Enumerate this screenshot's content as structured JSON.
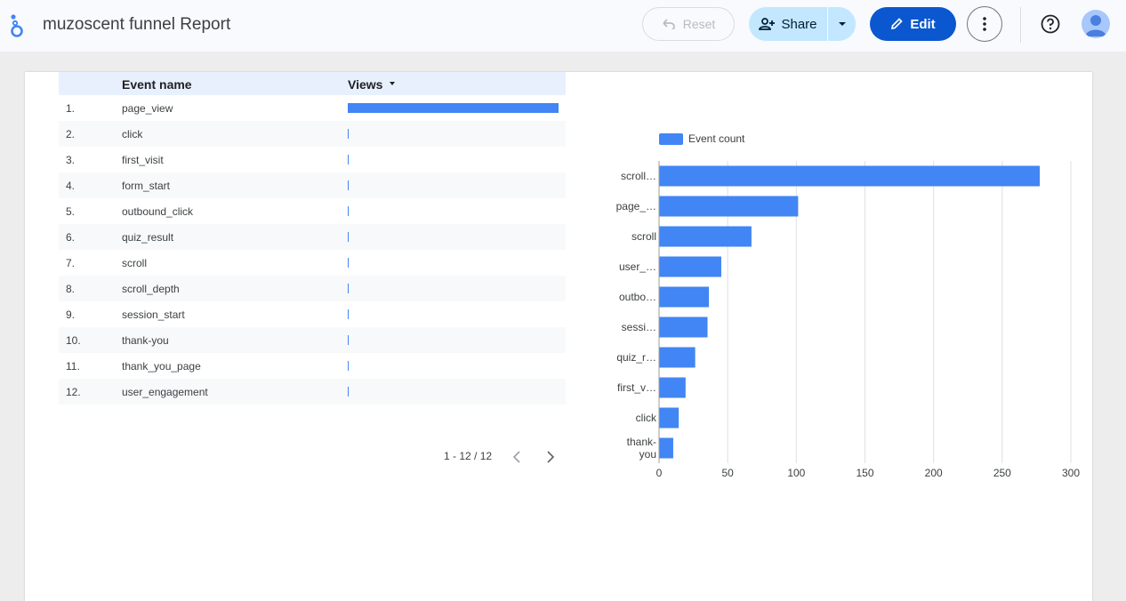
{
  "app": {
    "title": "muzoscent funnel Report"
  },
  "toolbar": {
    "reset_label": "Reset",
    "share_label": "Share",
    "edit_label": "Edit"
  },
  "colors": {
    "accent": "#0b57d0",
    "bar": "#4285f4",
    "share_bg": "#c2e7ff"
  },
  "icons": [
    "looker-studio-logo-icon",
    "undo-icon",
    "add-person-icon",
    "caret-down-icon",
    "pencil-icon",
    "more-vert-icon",
    "help-icon",
    "account-icon",
    "chevron-left-icon",
    "chevron-right-icon"
  ],
  "table": {
    "columns": [
      "Event name",
      "Views"
    ],
    "sorted_column": "Views",
    "rows": [
      {
        "index": "1.",
        "name": "page_view",
        "views_fraction": 1.0
      },
      {
        "index": "2.",
        "name": "click",
        "views_fraction": 0.0
      },
      {
        "index": "3.",
        "name": "first_visit",
        "views_fraction": 0.0
      },
      {
        "index": "4.",
        "name": "form_start",
        "views_fraction": 0.0
      },
      {
        "index": "5.",
        "name": "outbound_click",
        "views_fraction": 0.0
      },
      {
        "index": "6.",
        "name": "quiz_result",
        "views_fraction": 0.0
      },
      {
        "index": "7.",
        "name": "scroll",
        "views_fraction": 0.0
      },
      {
        "index": "8.",
        "name": "scroll_depth",
        "views_fraction": 0.0
      },
      {
        "index": "9.",
        "name": "session_start",
        "views_fraction": 0.0
      },
      {
        "index": "10.",
        "name": "thank-you",
        "views_fraction": 0.0
      },
      {
        "index": "11.",
        "name": "thank_you_page",
        "views_fraction": 0.0
      },
      {
        "index": "12.",
        "name": "user_engagement",
        "views_fraction": 0.0
      }
    ],
    "pagination": "1 - 12 / 12"
  },
  "chart_data": {
    "type": "bar",
    "orientation": "horizontal",
    "series": [
      {
        "name": "Event count",
        "values": [
          277,
          101,
          67,
          45,
          36,
          35,
          26,
          19,
          14,
          10
        ]
      }
    ],
    "categories": [
      "scroll…",
      "page_…",
      "scroll",
      "user_…",
      "outbo…",
      "sessi…",
      "quiz_r…",
      "first_v…",
      "click",
      "thank-you"
    ],
    "xlim": [
      0,
      300
    ],
    "xticks": [
      "0",
      "50",
      "100",
      "150",
      "200",
      "250",
      "300"
    ],
    "grid": true,
    "legend": "top-left"
  }
}
